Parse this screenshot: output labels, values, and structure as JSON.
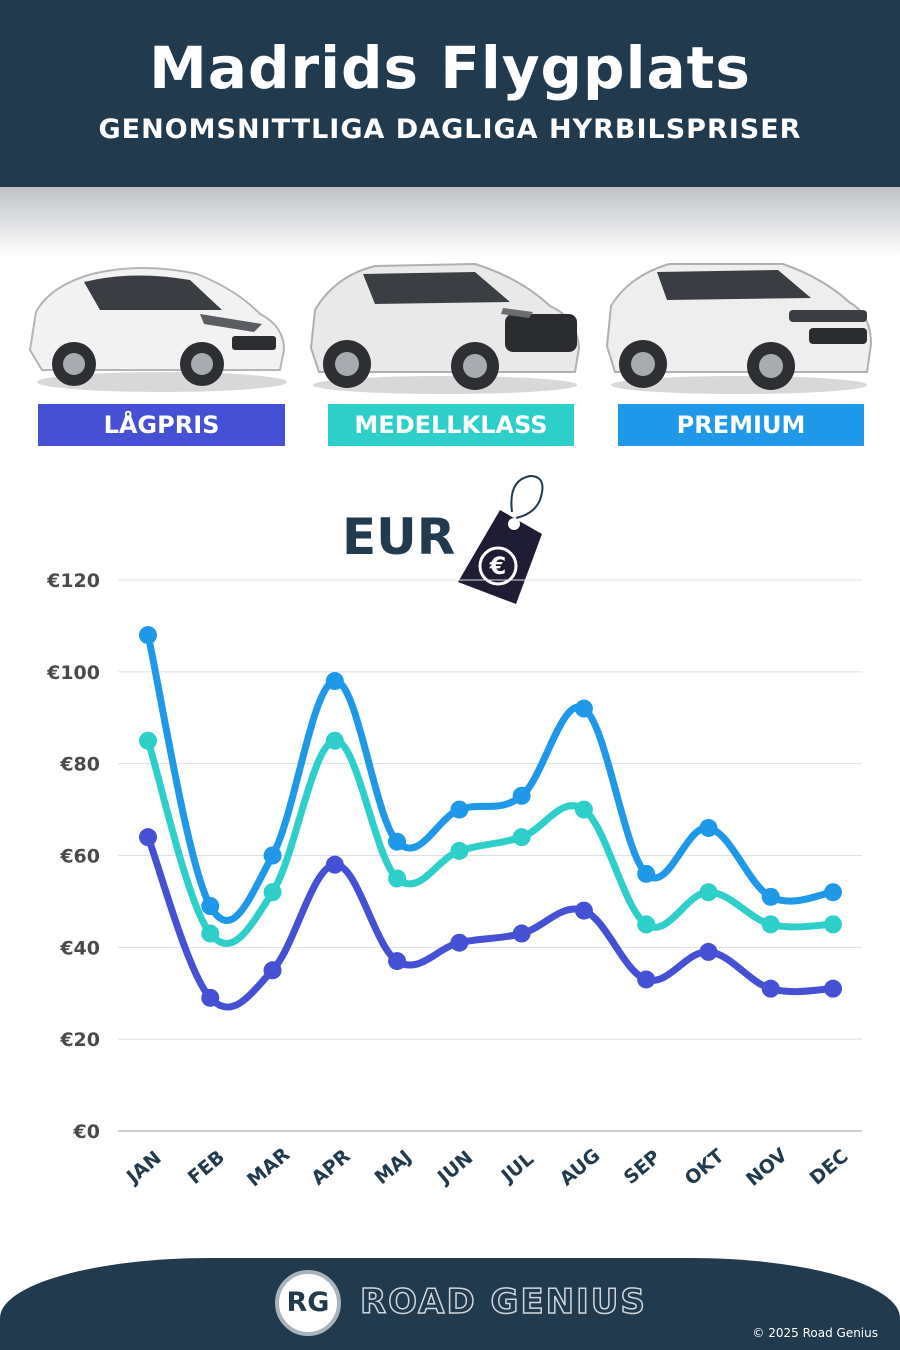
{
  "header": {
    "title": "Madrids Flygplats",
    "subtitle": "GENOMSNITTLIGA DAGLIGA HYRBILSPRISER"
  },
  "categories": {
    "budget": "LÅGPRIS",
    "midsize": "MEDELLKLASS",
    "premium": "PREMIUM"
  },
  "currency_label": "EUR",
  "currency_symbol": "€",
  "footer": {
    "logo_initials": "RG",
    "brand": "ROAD GENIUS",
    "copyright": "© 2025 Road Genius"
  },
  "colors": {
    "budget": "#4650d4",
    "midsize": "#2ecfc9",
    "premium": "#1f98ea",
    "header_bg": "#223a4e"
  },
  "chart_data": {
    "type": "line",
    "categories": [
      "JAN",
      "FEB",
      "MAR",
      "APR",
      "MAJ",
      "JUN",
      "JUL",
      "AUG",
      "SEP",
      "OKT",
      "NOV",
      "DEC"
    ],
    "y_ticks": [
      "€0",
      "€20",
      "€40",
      "€60",
      "€80",
      "€100",
      "€120"
    ],
    "ylim": [
      0,
      120
    ],
    "grid": true,
    "series": [
      {
        "key": "premium",
        "name": "PREMIUM",
        "values": [
          108,
          49,
          60,
          98,
          63,
          70,
          73,
          92,
          56,
          66,
          51,
          52
        ]
      },
      {
        "key": "midsize",
        "name": "MEDELLKLASS",
        "values": [
          85,
          43,
          52,
          85,
          55,
          61,
          64,
          70,
          45,
          52,
          45,
          45
        ]
      },
      {
        "key": "budget",
        "name": "LÅGPRIS",
        "values": [
          64,
          29,
          35,
          58,
          37,
          41,
          43,
          48,
          33,
          39,
          31,
          31
        ]
      }
    ]
  }
}
